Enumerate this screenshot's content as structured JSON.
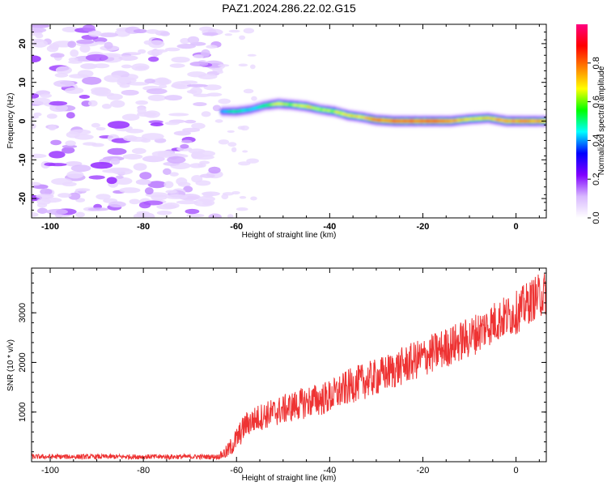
{
  "title": "PAZ1.2024.286.22.02.G15",
  "chart_data": [
    {
      "type": "heatmap",
      "name": "spectrogram",
      "xlabel": "Height of straight line (km)",
      "ylabel": "Frequency (Hz)",
      "xlim": [
        -104,
        6.5
      ],
      "ylim": [
        -25,
        25
      ],
      "x_ticks": [
        -100,
        -80,
        -60,
        -40,
        -20,
        0
      ],
      "y_ticks": [
        -20,
        -10,
        0,
        10,
        20
      ],
      "colorbar": {
        "label": "Normalized spectral amplitude",
        "range": [
          0,
          1
        ],
        "ticks": [
          0.0,
          0.2,
          0.4,
          0.6,
          0.8
        ],
        "tick_labels": [
          "0.0",
          "0.2",
          "0.4",
          "0.6",
          "0.8"
        ],
        "colormap": [
          "#ffffff",
          "#d8b8ff",
          "#8000ff",
          "#0000ff",
          "#00ffff",
          "#00ff00",
          "#ffff00",
          "#ff8000",
          "#ff0000",
          "#ff0080"
        ]
      },
      "noise_region": {
        "x_range": [
          -104,
          -64
        ],
        "amplitude_range": [
          0.0,
          0.2
        ]
      },
      "ridge": [
        {
          "x": -63,
          "freq": 2.5,
          "amp": 0.4
        },
        {
          "x": -60,
          "freq": 2.5,
          "amp": 0.5
        },
        {
          "x": -57,
          "freq": 3.0,
          "amp": 0.45
        },
        {
          "x": -54,
          "freq": 4.0,
          "amp": 0.5
        },
        {
          "x": -51,
          "freq": 4.5,
          "amp": 0.65
        },
        {
          "x": -48,
          "freq": 4.2,
          "amp": 0.6
        },
        {
          "x": -45,
          "freq": 3.8,
          "amp": 0.7
        },
        {
          "x": -42,
          "freq": 3.0,
          "amp": 0.6
        },
        {
          "x": -39,
          "freq": 2.5,
          "amp": 0.65
        },
        {
          "x": -36,
          "freq": 1.5,
          "amp": 0.7
        },
        {
          "x": -33,
          "freq": 1.0,
          "amp": 0.7
        },
        {
          "x": -30,
          "freq": 0.3,
          "amp": 0.8
        },
        {
          "x": -26,
          "freq": 0.0,
          "amp": 0.85
        },
        {
          "x": -22,
          "freq": 0.0,
          "amp": 0.85
        },
        {
          "x": -18,
          "freq": 0.0,
          "amp": 0.85
        },
        {
          "x": -14,
          "freq": 0.0,
          "amp": 0.8
        },
        {
          "x": -10,
          "freq": 0.5,
          "amp": 0.7
        },
        {
          "x": -6,
          "freq": 0.8,
          "amp": 0.7
        },
        {
          "x": -2,
          "freq": 0.0,
          "amp": 0.8
        },
        {
          "x": 2,
          "freq": 0.0,
          "amp": 0.8
        },
        {
          "x": 6.5,
          "freq": 0.0,
          "amp": 0.75
        }
      ]
    },
    {
      "type": "line",
      "name": "snr",
      "xlabel": "Height of straight line (km)",
      "ylabel": "SNR (10 * v/v)",
      "xlim": [
        -104,
        6.5
      ],
      "ylim": [
        0,
        3900
      ],
      "x_ticks": [
        -100,
        -80,
        -60,
        -40,
        -20,
        0
      ],
      "y_ticks": [
        1000,
        2000,
        3000
      ],
      "color": "#ee3333",
      "trend": [
        {
          "x": -104,
          "y": 100
        },
        {
          "x": -64,
          "y": 100
        },
        {
          "x": -62,
          "y": 200
        },
        {
          "x": -60,
          "y": 450
        },
        {
          "x": -58,
          "y": 750
        },
        {
          "x": -55,
          "y": 900
        },
        {
          "x": -50,
          "y": 1050
        },
        {
          "x": -45,
          "y": 1200
        },
        {
          "x": -40,
          "y": 1300
        },
        {
          "x": -35,
          "y": 1550
        },
        {
          "x": -30,
          "y": 1700
        },
        {
          "x": -25,
          "y": 1900
        },
        {
          "x": -20,
          "y": 2100
        },
        {
          "x": -15,
          "y": 2300
        },
        {
          "x": -10,
          "y": 2500
        },
        {
          "x": -5,
          "y": 2800
        },
        {
          "x": 0,
          "y": 3000
        },
        {
          "x": 4,
          "y": 3300
        },
        {
          "x": 6.5,
          "y": 3400
        }
      ],
      "noise_amplitude": [
        {
          "x": -104,
          "y": 50
        },
        {
          "x": -64,
          "y": 50
        },
        {
          "x": -60,
          "y": 250
        },
        {
          "x": -40,
          "y": 350
        },
        {
          "x": -20,
          "y": 400
        },
        {
          "x": 6.5,
          "y": 450
        }
      ]
    }
  ]
}
